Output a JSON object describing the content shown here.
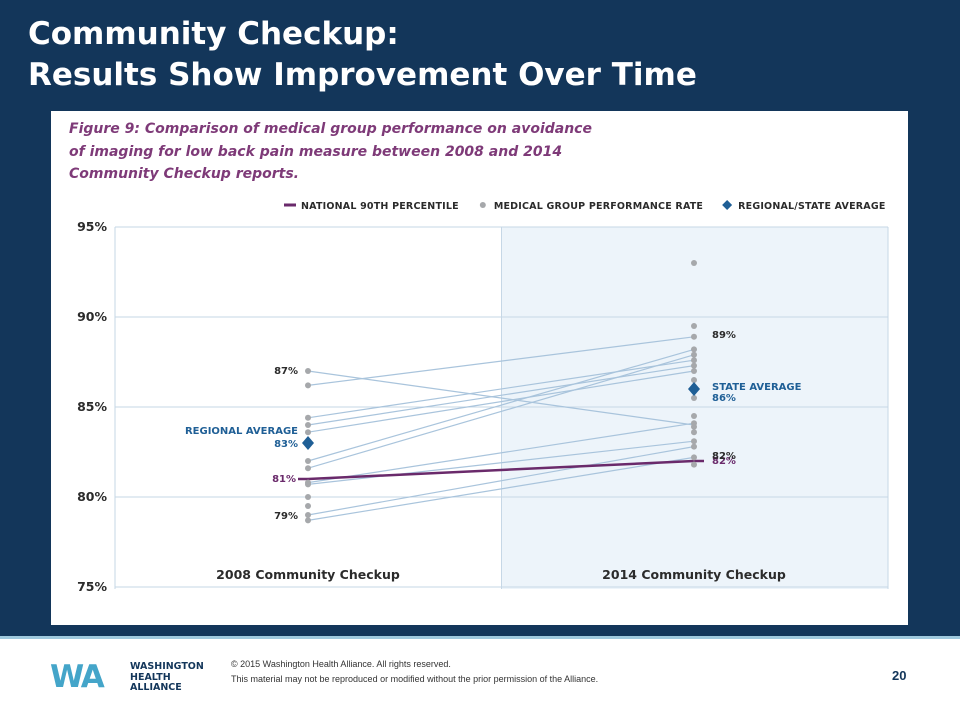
{
  "slide": {
    "title_line1": "Community Checkup:",
    "title_line2": "Results Show Improvement Over Time"
  },
  "figure": {
    "caption_line1": "Figure 9: Comparison of medical group performance on avoidance",
    "caption_line2": "of imaging for low back pain measure between 2008 and 2014",
    "caption_line3": "Community Checkup reports."
  },
  "chart_data": {
    "type": "scatter",
    "categories": [
      "2008 Community Checkup",
      "2014 Community Checkup"
    ],
    "ylim": [
      75,
      95
    ],
    "y_ticks": [
      95,
      90,
      85,
      80,
      75
    ],
    "y_tick_format": "%",
    "grid": true,
    "legend_position": "top-right",
    "legend": [
      {
        "label": "NATIONAL 90TH PERCENTILE",
        "marker": "line",
        "color": "#6a2a6b"
      },
      {
        "label": "MEDICAL GROUP PERFORMANCE RATE",
        "marker": "dot",
        "color": "#a6a8ab"
      },
      {
        "label": "REGIONAL/STATE AVERAGE",
        "marker": "diamond",
        "color": "#1f5f96"
      }
    ],
    "series": [
      {
        "name": "NATIONAL 90TH PERCENTILE",
        "values": [
          81,
          82
        ]
      },
      {
        "name": "REGIONAL/STATE AVERAGE",
        "values": [
          83,
          86
        ]
      }
    ],
    "medical_groups": {
      "2008": [
        87,
        86.2,
        84.4,
        84,
        83.6,
        82,
        81.6,
        80.8,
        80.7,
        80,
        79.5,
        79,
        78.7
      ],
      "2014": [
        93,
        89.5,
        88.9,
        88.2,
        87.9,
        87.6,
        87.3,
        87,
        86.5,
        85.5,
        84.5,
        84.1,
        83.9,
        83.6,
        83.1,
        82.8,
        82.2,
        81.8
      ]
    },
    "connecting_lines": [
      [
        87,
        84
      ],
      [
        86.2,
        88.9
      ],
      [
        84.4,
        87.6
      ],
      [
        84,
        87.3
      ],
      [
        83.6,
        87
      ],
      [
        82,
        88.2
      ],
      [
        81.6,
        87.9
      ],
      [
        80.8,
        84.1
      ],
      [
        80.7,
        83.1
      ],
      [
        79,
        82.8
      ],
      [
        78.7,
        82.2
      ]
    ],
    "data_labels": {
      "2008": [
        {
          "text": "87%",
          "value": 87
        },
        {
          "text": "REGIONAL AVERAGE",
          "value": 83
        },
        {
          "text": "83%",
          "value": 83
        },
        {
          "text": "81%",
          "value": 81
        },
        {
          "text": "79%",
          "value": 79
        }
      ],
      "2014": [
        {
          "text": "89%",
          "value": 89
        },
        {
          "text": "STATE AVERAGE",
          "value": 86
        },
        {
          "text": "86%",
          "value": 86
        },
        {
          "text": "82%",
          "value": 82
        },
        {
          "text": "82%",
          "value": 82
        }
      ]
    },
    "colors": {
      "national": "#6a2a6b",
      "groups": "#a6a8ab",
      "group_lines": "#a9c4dc",
      "average": "#1f5f96",
      "grid": "#c6d7e6",
      "highlight_band": "#edf4fa",
      "axis_text": "#2b2b2b"
    }
  },
  "footer": {
    "logo_mark": "WA",
    "logo_line1": "WASHINGTON",
    "logo_line2": "HEALTH",
    "logo_line3": "ALLIANCE",
    "copyright_line1": "© 2015 Washington Health Alliance. All rights reserved.",
    "copyright_line2": "This material may not be reproduced or modified without the prior permission of the Alliance.",
    "page_number": "20"
  }
}
